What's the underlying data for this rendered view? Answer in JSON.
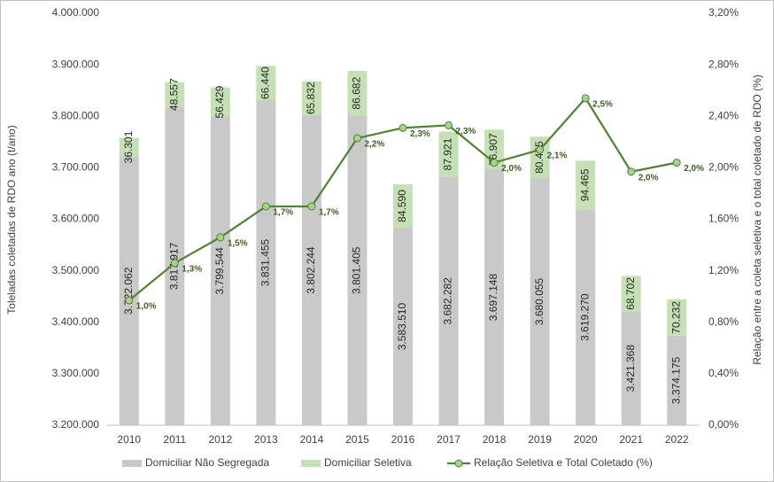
{
  "chart_data": {
    "type": "bar-line",
    "y_label": "Toleladas coletadas de RDO ano (t/ano)",
    "y2_label": "Relação entre a coleta seletiva e o total coletado de RDO (%)",
    "categories": [
      "2010",
      "2011",
      "2012",
      "2013",
      "2014",
      "2015",
      "2016",
      "2017",
      "2018",
      "2019",
      "2020",
      "2021",
      "2022"
    ],
    "series": [
      {
        "name": "Domiciliar Não Segregada",
        "color": "#c9c9c9",
        "type": "bar",
        "values": [
          3722062,
          3817917,
          3799544,
          3831455,
          3802244,
          3801405,
          3583510,
          3682282,
          3697148,
          3680055,
          3619270,
          3421368,
          3374175
        ],
        "value_labels": [
          "3.722.062",
          "3.817.917",
          "3.799.544",
          "3.831.455",
          "3.802.244",
          "3.801.405",
          "3.583.510",
          "3.682.282",
          "3.697.148",
          "3.680.055",
          "3.619.270",
          "3.421.368",
          "3.374.175"
        ]
      },
      {
        "name": "Domiciliar Seletiva",
        "color": "#c5e0b4",
        "type": "bar",
        "values": [
          36301,
          48557,
          56429,
          66440,
          65832,
          86682,
          84590,
          87921,
          76907,
          80455,
          94465,
          68702,
          70232
        ],
        "value_labels": [
          "36.301",
          "48.557",
          "56.429",
          "66.440",
          "65.832",
          "86.682",
          "84.590",
          "87.921",
          "76.907",
          "80.455",
          "94.465",
          "68.702",
          "70.232"
        ]
      },
      {
        "name": "Relação Seletiva e Total Coletado (%)",
        "color": "#548235",
        "type": "line",
        "axis": "y2",
        "values": [
          0.97,
          1.26,
          1.46,
          1.7,
          1.7,
          2.23,
          2.31,
          2.33,
          2.04,
          2.14,
          2.54,
          1.97,
          2.04
        ],
        "value_labels": [
          "1,0%",
          "1,3%",
          "1,5%",
          "1,7%",
          "1,7%",
          "2,2%",
          "2,3%",
          "2,3%",
          "2,0%",
          "2,1%",
          "2,5%",
          "2,0%",
          "2,0%"
        ]
      }
    ],
    "ylim": [
      3200000,
      4000000
    ],
    "yticks": [
      {
        "value": 3200000,
        "label": "3.200.000"
      },
      {
        "value": 3300000,
        "label": "3.300.000"
      },
      {
        "value": 3400000,
        "label": "3.400.000"
      },
      {
        "value": 3500000,
        "label": "3.500.000"
      },
      {
        "value": 3600000,
        "label": "3.600.000"
      },
      {
        "value": 3700000,
        "label": "3.700.000"
      },
      {
        "value": 3800000,
        "label": "3.800.000"
      },
      {
        "value": 3900000,
        "label": "3.900.000"
      },
      {
        "value": 4000000,
        "label": "4.000.000"
      }
    ],
    "y2lim": [
      0,
      3.2
    ],
    "y2ticks": [
      {
        "value": 0,
        "label": "0,00%"
      },
      {
        "value": 0.4,
        "label": "0,40%"
      },
      {
        "value": 0.8,
        "label": "0,80%"
      },
      {
        "value": 1.2,
        "label": "1,20%"
      },
      {
        "value": 1.6,
        "label": "1,60%"
      },
      {
        "value": 2.0,
        "label": "2,00%"
      },
      {
        "value": 2.4,
        "label": "2,40%"
      },
      {
        "value": 2.8,
        "label": "2,80%"
      },
      {
        "value": 3.2,
        "label": "3,20%"
      }
    ]
  }
}
